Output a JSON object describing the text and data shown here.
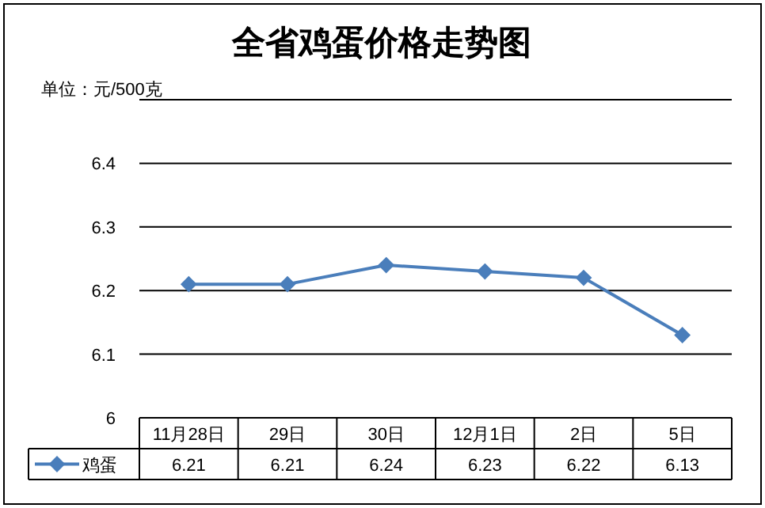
{
  "chart_data": {
    "type": "line",
    "title": "全省鸡蛋价格走势图",
    "ylabel": "单位：元/500克",
    "categories": [
      "11月28日",
      "29日",
      "30日",
      "12月1日",
      "2日",
      "5日"
    ],
    "series": [
      {
        "name": "鸡蛋",
        "color": "#4a7ebb",
        "values": [
          6.21,
          6.21,
          6.24,
          6.23,
          6.22,
          6.13
        ]
      }
    ],
    "ylim": [
      6,
      6.5
    ],
    "yticks": [
      6,
      6.1,
      6.2,
      6.3,
      6.4,
      {
        "value": 6.5,
        "label": null
      }
    ],
    "grid": "y",
    "legend": "bottom",
    "marker": "diamond",
    "line_style": "solid",
    "data_labels": true
  }
}
